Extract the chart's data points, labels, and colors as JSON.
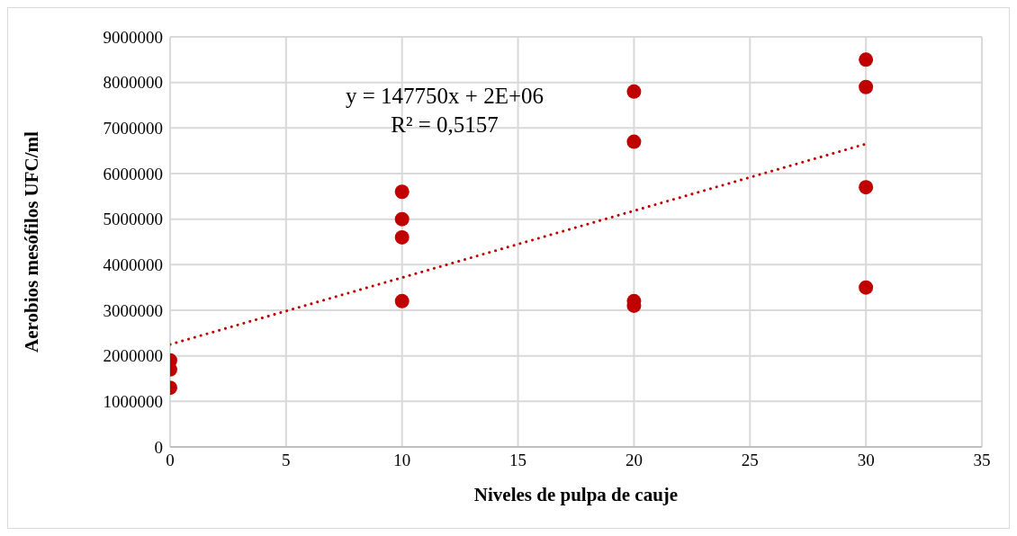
{
  "chart_data": {
    "type": "scatter",
    "xlabel": "Niveles de pulpa de cauje",
    "ylabel": "Aerobios mesófilos UFC/ml",
    "annotations": [
      "y = 147750x + 2E+06",
      "R² = 0,5157"
    ],
    "series": [
      {
        "type": "scatter",
        "color": "#c00000",
        "marker": "circle",
        "x": [
          0,
          0,
          0,
          10,
          10,
          10,
          10,
          20,
          20,
          20,
          20,
          30,
          30,
          30,
          30
        ],
        "values": [
          1900000,
          1700000,
          1300000,
          5600000,
          5000000,
          4600000,
          3200000,
          7800000,
          6700000,
          3200000,
          3100000,
          8500000,
          7900000,
          5700000,
          3500000
        ]
      },
      {
        "type": "line",
        "color": "#c00000",
        "line_style": "dotted",
        "marker": "none",
        "x": [
          0,
          30
        ],
        "values": [
          2250000,
          6650000
        ]
      }
    ],
    "xlim": [
      0,
      35
    ],
    "xticks": [
      0,
      5,
      10,
      15,
      20,
      25,
      30,
      35
    ],
    "ylim": [
      0,
      9000000
    ],
    "yticks": [
      0,
      1000000,
      2000000,
      3000000,
      4000000,
      5000000,
      6000000,
      7000000,
      8000000,
      9000000
    ],
    "grid": true
  }
}
